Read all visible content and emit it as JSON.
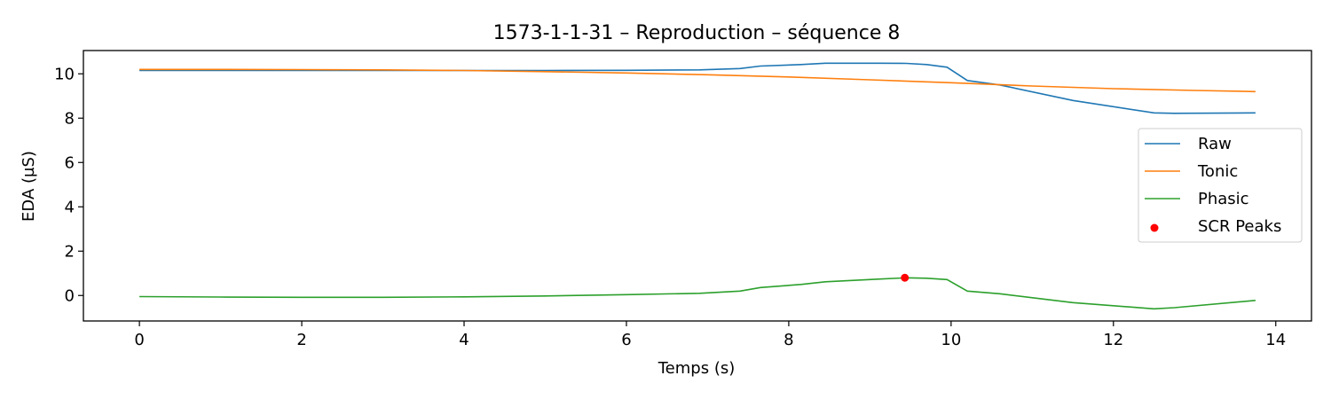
{
  "chart_data": {
    "type": "line",
    "title": "1573-1-1-31 – Reproduction – séquence 8",
    "xlabel": "Temps (s)",
    "ylabel": "EDA (µS)",
    "xlim": [
      -0.69,
      14.44
    ],
    "ylim": [
      -1.15,
      11.05
    ],
    "xticks": [
      0,
      2,
      4,
      6,
      8,
      10,
      12,
      14
    ],
    "xtick_labels": [
      "0",
      "2",
      "4",
      "6",
      "8",
      "10",
      "12",
      "14"
    ],
    "yticks": [
      0,
      2,
      4,
      6,
      8,
      10
    ],
    "ytick_labels": [
      "0",
      "2",
      "4",
      "6",
      "8",
      "10"
    ],
    "grid": false,
    "legend_position": "center-right",
    "series": [
      {
        "name": "Raw",
        "color": "#1f77b4",
        "x": [
          0,
          1,
          2,
          3,
          4,
          5,
          6,
          6.9,
          7.4,
          7.65,
          8.15,
          8.45,
          9.1,
          9.45,
          9.7,
          9.95,
          10.2,
          10.6,
          11.5,
          12.5,
          12.75,
          13.75
        ],
        "y": [
          10.15,
          10.15,
          10.15,
          10.15,
          10.15,
          10.15,
          10.16,
          10.18,
          10.24,
          10.35,
          10.42,
          10.48,
          10.48,
          10.47,
          10.42,
          10.3,
          9.7,
          9.5,
          8.8,
          8.24,
          8.22,
          8.24
        ]
      },
      {
        "name": "Tonic",
        "color": "#ff7f0e",
        "x": [
          0,
          1,
          2,
          3,
          4,
          5,
          6,
          7,
          8,
          9,
          10,
          11,
          12,
          13,
          13.75
        ],
        "y": [
          10.2,
          10.2,
          10.19,
          10.18,
          10.15,
          10.1,
          10.04,
          9.96,
          9.86,
          9.73,
          9.6,
          9.45,
          9.33,
          9.25,
          9.2
        ]
      },
      {
        "name": "Phasic",
        "color": "#2ca02c",
        "x": [
          0,
          1,
          2,
          3,
          4,
          5,
          6,
          6.9,
          7.4,
          7.65,
          8.15,
          8.45,
          9.1,
          9.45,
          9.7,
          9.95,
          10.2,
          10.6,
          11.5,
          12.5,
          12.75,
          13.75
        ],
        "y": [
          -0.05,
          -0.07,
          -0.08,
          -0.08,
          -0.06,
          -0.02,
          0.04,
          0.1,
          0.2,
          0.36,
          0.5,
          0.62,
          0.74,
          0.8,
          0.78,
          0.72,
          0.2,
          0.08,
          -0.32,
          -0.6,
          -0.55,
          -0.22
        ]
      }
    ],
    "scatter": {
      "name": "SCR Peaks",
      "color": "#ff0000",
      "points": [
        {
          "x": 9.43,
          "y": 0.8
        }
      ]
    }
  }
}
